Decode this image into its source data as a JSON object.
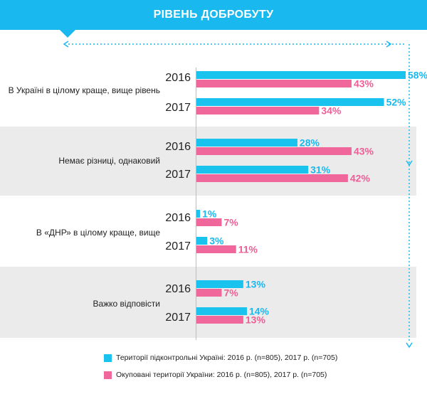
{
  "header": {
    "title": "РІВЕНЬ ДОБРОБУТУ"
  },
  "colors": {
    "header": "#19b9ef",
    "controlled": "#19c3ee",
    "occupied": "#f0679b",
    "band": "#ebebeb"
  },
  "chart_data": {
    "type": "bar",
    "orientation": "horizontal",
    "title": "РІВЕНЬ ДОБРОБУТУ",
    "unit": "%",
    "categories": [
      "В Україні в цілому краще, вище рівень",
      "Немає різниці, однаковий",
      "В «ДНР» в цілому краще, вище",
      "Важко відповісти"
    ],
    "years": [
      "2016",
      "2017"
    ],
    "series": [
      {
        "name": "Території підконтрольні Україні:  2016 р. (n=805), 2017 р. (n=705)",
        "values": {
          "2016": [
            58,
            28,
            1,
            13
          ],
          "2017": [
            52,
            31,
            3,
            14
          ]
        },
        "labels": {
          "2016": [
            "58%",
            "28%",
            "1%",
            "13%"
          ],
          "2017": [
            "52%",
            "31%",
            "3%",
            "14%"
          ]
        }
      },
      {
        "name": "Окуповані території України: 2016 р. (n=805), 2017 р. (n=705)",
        "values": {
          "2016": [
            43,
            43,
            7,
            7
          ],
          "2017": [
            34,
            42,
            11,
            13
          ]
        },
        "labels": {
          "2016": [
            "43%",
            "43%",
            "7%",
            "7%"
          ],
          "2017": [
            "34%",
            "42%",
            "11%",
            "13%"
          ]
        }
      }
    ],
    "xlim": [
      0,
      60
    ],
    "grid": false,
    "legend_position": "bottom"
  }
}
